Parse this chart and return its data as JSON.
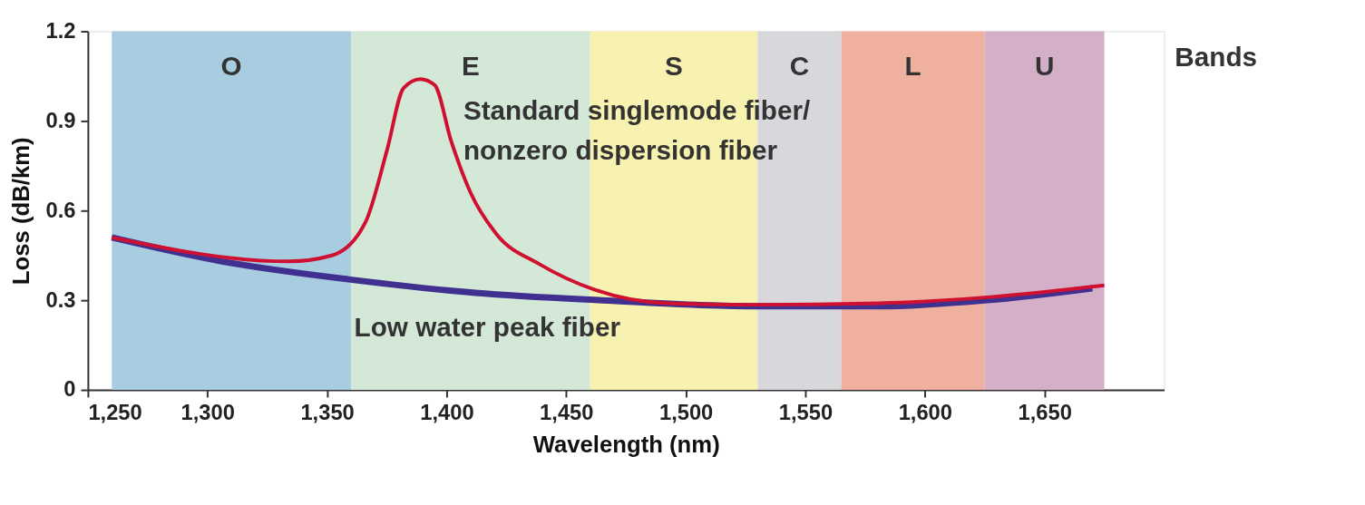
{
  "chart_data": {
    "type": "line",
    "xlabel": "Wavelength (nm)",
    "ylabel": "Loss (dB/km)",
    "xlim": [
      1250,
      1700
    ],
    "ylim": [
      0,
      1.2
    ],
    "xticks": [
      {
        "value": 1250,
        "label": "1,250"
      },
      {
        "value": 1300,
        "label": "1,300"
      },
      {
        "value": 1350,
        "label": "1,350"
      },
      {
        "value": 1400,
        "label": "1,400"
      },
      {
        "value": 1450,
        "label": "1,450"
      },
      {
        "value": 1500,
        "label": "1,500"
      },
      {
        "value": 1550,
        "label": "1,550"
      },
      {
        "value": 1600,
        "label": "1,600"
      },
      {
        "value": 1650,
        "label": "1,650"
      }
    ],
    "yticks": [
      0,
      0.3,
      0.6,
      0.9,
      1.2
    ],
    "grid": false,
    "marker": "none",
    "line_style": "solid",
    "series": [
      {
        "name": "Low water peak fiber",
        "color": "#403090",
        "x": [
          1260,
          1306,
          1359,
          1412,
          1465,
          1528,
          1581,
          1626,
          1670
        ],
        "values": [
          0.51,
          0.43,
          0.37,
          0.325,
          0.3,
          0.28,
          0.28,
          0.3,
          0.34
        ]
      },
      {
        "name": "Standard singlemode fiber/\nnonzero dispersion fiber",
        "color": "#d01030",
        "x": [
          1260,
          1334,
          1352,
          1366,
          1375,
          1382,
          1389,
          1395,
          1402,
          1410,
          1421,
          1439,
          1462,
          1492,
          1528,
          1581,
          1626,
          1675
        ],
        "values": [
          0.51,
          0.43,
          0.45,
          0.56,
          0.8,
          1.01,
          1.04,
          1.02,
          0.83,
          0.66,
          0.52,
          0.42,
          0.335,
          0.29,
          0.285,
          0.29,
          0.31,
          0.35
        ]
      }
    ],
    "bands": [
      {
        "axis": "x",
        "from": 1260,
        "to": 1360,
        "label": "O",
        "color": "#a8cce0"
      },
      {
        "axis": "x",
        "from": 1360,
        "to": 1460,
        "label": "E",
        "color": "#d4e8d8"
      },
      {
        "axis": "x",
        "from": 1460,
        "to": 1530,
        "label": "S",
        "color": "#f7f2b0"
      },
      {
        "axis": "x",
        "from": 1530,
        "to": 1565,
        "label": "C",
        "color": "#d8d8dc"
      },
      {
        "axis": "x",
        "from": 1565,
        "to": 1625,
        "label": "L",
        "color": "#f0b0a0"
      },
      {
        "axis": "x",
        "from": 1625,
        "to": 1675,
        "label": "U",
        "color": "#d4b0c8"
      }
    ],
    "annotations": [
      "Bands"
    ]
  }
}
